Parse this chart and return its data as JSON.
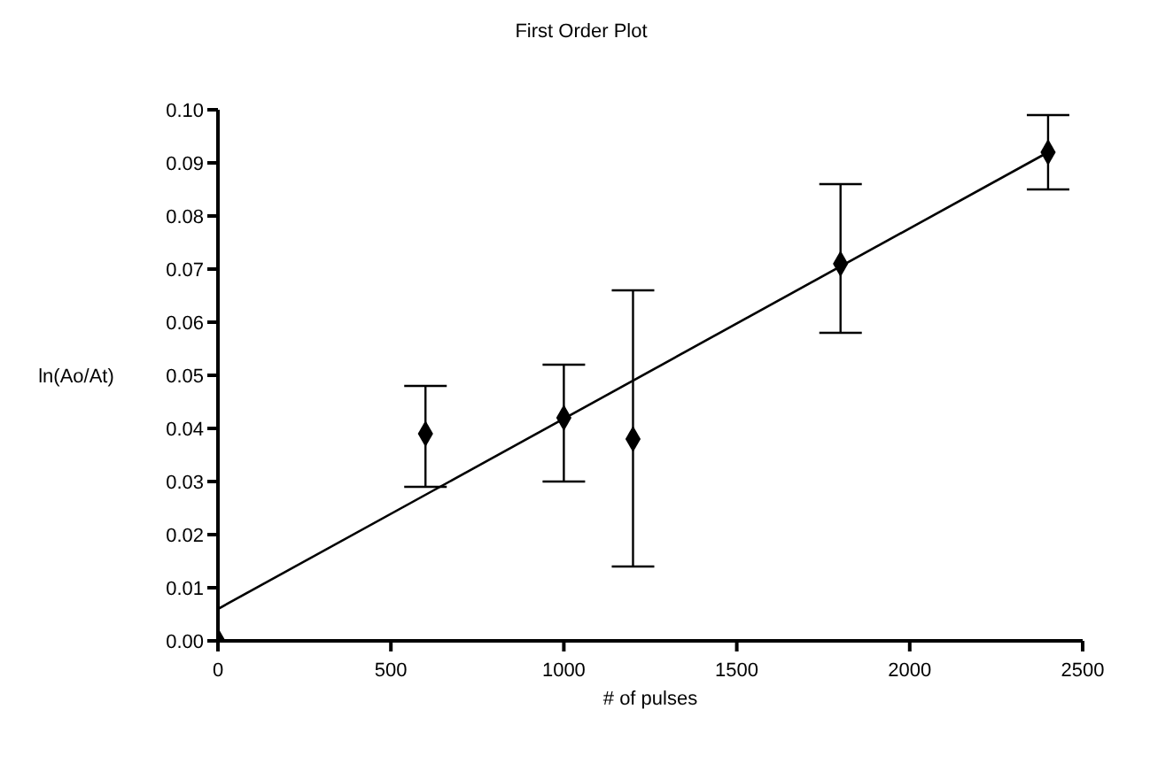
{
  "chart_data": {
    "type": "scatter",
    "title": "First Order Plot",
    "xlabel": "# of pulses",
    "ylabel": "ln(Ao/At)",
    "x": [
      0,
      600,
      1000,
      1200,
      1800,
      2400
    ],
    "series": [
      {
        "color": "#000000",
        "marker": "diamond",
        "values": [
          0,
          0.039,
          0.042,
          0.038,
          0.071,
          0.092
        ],
        "errors": [
          null,
          [
            0.029,
            0.048
          ],
          [
            0.03,
            0.052
          ],
          [
            0.014,
            0.066
          ],
          [
            0.058,
            0.086
          ],
          [
            0.085,
            0.099
          ]
        ]
      },
      {
        "type": "line",
        "color": "#000000",
        "marker": "none",
        "line_style": "solid",
        "x": [
          0,
          2400
        ],
        "values": [
          0.006,
          0.092
        ]
      }
    ],
    "xlim": [
      0,
      2500
    ],
    "xticks": [
      0,
      500,
      1000,
      1500,
      2000,
      2500
    ],
    "ylim": [
      0,
      0.1
    ],
    "yticks": [
      {
        "value": 0,
        "label": "0.00"
      },
      {
        "value": 0.01,
        "label": "0.01"
      },
      {
        "value": 0.02,
        "label": "0.02"
      },
      {
        "value": 0.03,
        "label": "0.03"
      },
      {
        "value": 0.04,
        "label": "0.04"
      },
      {
        "value": 0.05,
        "label": "0.05"
      },
      {
        "value": 0.06,
        "label": "0.06"
      },
      {
        "value": 0.07,
        "label": "0.07"
      },
      {
        "value": 0.08,
        "label": "0.08"
      },
      {
        "value": 0.09,
        "label": "0.09"
      },
      {
        "value": 0.1,
        "label": "0.10"
      }
    ],
    "grid": false,
    "legend": false
  }
}
